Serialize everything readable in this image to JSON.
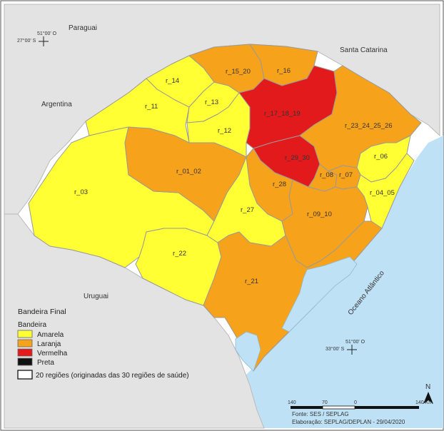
{
  "colors": {
    "amarela": "#ffff33",
    "laranja": "#f7a21b",
    "vermelha": "#e31a1c",
    "preta": "#111111",
    "ocean": "#bfe1f5",
    "neighbor": "#e3e3e3",
    "neighbor_border": "#b9b9b9"
  },
  "neighbors": {
    "paraguai": "Paraguai",
    "argentina": "Argentina",
    "uruguai": "Uruguai",
    "santa_catarina": "Santa Catarina",
    "ocean_label": "Oceano Atlântico"
  },
  "coords": {
    "nw_lon": "51°00' O",
    "nw_lat": "27°00' S",
    "se_lon": "51°00' O",
    "se_lat": "33°00' S"
  },
  "regions": {
    "r_03": "r_03",
    "r_22": "r_22",
    "r_01_02": "r_01_02",
    "r_11": "r_11",
    "r_14": "r_14",
    "r_13": "r_13",
    "r_12": "r_12",
    "r_15_20": "r_15_20",
    "r_16": "r_16",
    "r_17_18_19": "r_17_18_19",
    "r_23_24_25_26": "r_23_24_25_26",
    "r_29_30": "r_29_30",
    "r_06": "r_06",
    "r_08": "r_08",
    "r_07": "r_07",
    "r_04_05": "r_04_05",
    "r_28": "r_28",
    "r_27": "r_27",
    "r_09_10": "r_09_10",
    "r_21": "r_21"
  },
  "legend": {
    "title": "Bandeira Final",
    "subtitle": "Bandeira",
    "items": [
      {
        "label": "Amarela"
      },
      {
        "label": "Laranja"
      },
      {
        "label": "Vermelha"
      },
      {
        "label": "Preta"
      }
    ],
    "regions_note": "20 regiões (originadas das 30 regiões de saúde)"
  },
  "scale": {
    "ticks": [
      "140",
      "70",
      "0",
      "140 Km"
    ]
  },
  "north": "N",
  "credits": {
    "source": "Fonte: SES / SEPLAG",
    "elaboration": "Elaboração: SEPLAG/DEPLAN - 29/04/2020"
  }
}
